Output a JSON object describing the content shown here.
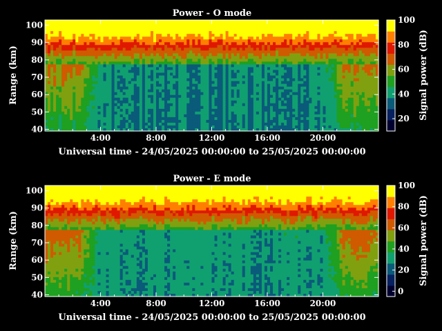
{
  "colors": {
    "background": "#000000",
    "foreground": "#ffffff",
    "colormap": [
      "#000030",
      "#062060",
      "#0a5a7a",
      "#10a070",
      "#1fa020",
      "#80a010",
      "#d05a00",
      "#e01800",
      "#ff8000",
      "#ffff00"
    ]
  },
  "chart_data": [
    {
      "type": "heatmap",
      "title": "Power - O mode",
      "xlabel": "Universal time - 24/05/2025 00:00:00 to 25/05/2025 00:00:00",
      "ylabel": "Range (km)",
      "xticks": [
        "4:00",
        "8:00",
        "12:00",
        "16:00",
        "20:00"
      ],
      "xtick_values": [
        4,
        8,
        12,
        16,
        20
      ],
      "xlim": [
        0,
        24
      ],
      "yticks": [
        "40",
        "50",
        "60",
        "70",
        "80",
        "90",
        "100"
      ],
      "ytick_values": [
        40,
        50,
        60,
        70,
        80,
        90,
        100
      ],
      "ylim": [
        39,
        103
      ],
      "colorbar_label": "Signal power (dB)",
      "colorbar_ticks": [
        "20",
        "40",
        "60",
        "80",
        "100"
      ],
      "colorbar_values": [
        20,
        40,
        60,
        80,
        100
      ],
      "colorbar_range": [
        10,
        100
      ]
    },
    {
      "type": "heatmap",
      "title": "Power - E mode",
      "xlabel": "Universal time - 24/05/2025 00:00:00 to 25/05/2025 00:00:00",
      "ylabel": "Range (km)",
      "xticks": [
        "4:00",
        "8:00",
        "12:00",
        "16:00",
        "20:00"
      ],
      "xtick_values": [
        4,
        8,
        12,
        16,
        20
      ],
      "xlim": [
        0,
        24
      ],
      "yticks": [
        "40",
        "50",
        "60",
        "70",
        "80",
        "90",
        "100"
      ],
      "ytick_values": [
        40,
        50,
        60,
        70,
        80,
        90,
        100
      ],
      "ylim": [
        39,
        103
      ],
      "colorbar_label": "Signal power (dB)",
      "colorbar_ticks": [
        "0",
        "20",
        "40",
        "60",
        "80",
        "100"
      ],
      "colorbar_values": [
        0,
        20,
        40,
        60,
        80,
        100
      ],
      "colorbar_range": [
        -5,
        100
      ]
    }
  ]
}
